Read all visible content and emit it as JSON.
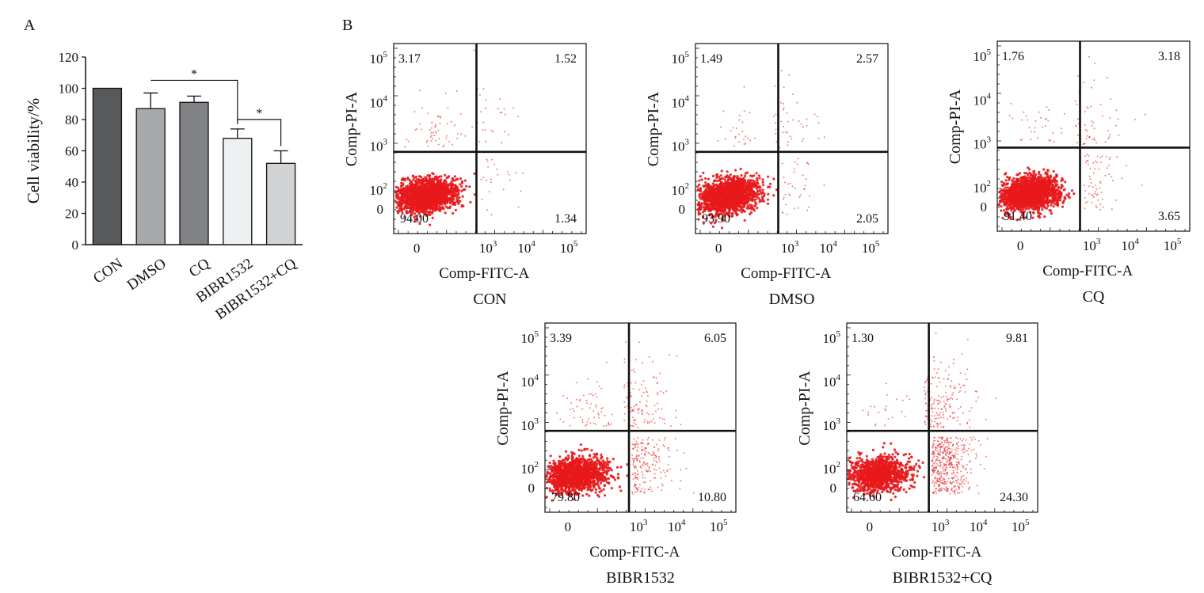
{
  "panel_labels": {
    "a": "A",
    "b": "B"
  },
  "chart_data": [
    {
      "type": "bar",
      "categories": [
        "CON",
        "DMSO",
        "CQ",
        "BIBR1532",
        "BIBR1532+CQ"
      ],
      "values": [
        100,
        87,
        91,
        68,
        52
      ],
      "errors": [
        0,
        10,
        4,
        6,
        8
      ],
      "ylabel": "Cell viability/%",
      "ylim": [
        0,
        120
      ],
      "yticks": [
        "0",
        "20",
        "40",
        "60",
        "80",
        "100",
        "120"
      ],
      "colors": [
        "#58595b",
        "#a7a9ac",
        "#808285",
        "#eef1f1",
        "#d1d3d4"
      ],
      "significance": [
        {
          "from": 1,
          "to": 3,
          "label": "*"
        },
        {
          "from": 3,
          "to": 4,
          "label": "*"
        }
      ]
    },
    {
      "type": "scatter",
      "title": "CON",
      "xlabel": "Comp-FITC-A",
      "ylabel": "Comp-PI-A",
      "quadrants": {
        "ul": "3.17",
        "ur": "1.52",
        "ll": "94.00",
        "lr": "1.34"
      }
    },
    {
      "type": "scatter",
      "title": "DMSO",
      "xlabel": "Comp-FITC-A",
      "ylabel": "Comp-PI-A",
      "quadrants": {
        "ul": "1.49",
        "ur": "2.57",
        "ll": "93.90",
        "lr": "2.05"
      }
    },
    {
      "type": "scatter",
      "title": "CQ",
      "xlabel": "Comp-FITC-A",
      "ylabel": "Comp-PI-A",
      "quadrants": {
        "ul": "1.76",
        "ur": "3.18",
        "ll": "91.40",
        "lr": "3.65"
      }
    },
    {
      "type": "scatter",
      "title": "BIBR1532",
      "xlabel": "Comp-FITC-A",
      "ylabel": "Comp-PI-A",
      "quadrants": {
        "ul": "3.39",
        "ur": "6.05",
        "ll": "79.80",
        "lr": "10.80"
      }
    },
    {
      "type": "scatter",
      "title": "BIBR1532+CQ",
      "xlabel": "Comp-FITC-A",
      "ylabel": "Comp-PI-A",
      "quadrants": {
        "ul": "1.30",
        "ur": "9.81",
        "ll": "64.60",
        "lr": "24.30"
      }
    }
  ],
  "flow_axis_ticks": {
    "x": [
      {
        "base": "0",
        "exp": ""
      },
      {
        "base": "10",
        "exp": "3"
      },
      {
        "base": "10",
        "exp": "4"
      },
      {
        "base": "10",
        "exp": "5"
      }
    ],
    "y": [
      {
        "base": "0",
        "exp": ""
      },
      {
        "base": "10",
        "exp": "2"
      },
      {
        "base": "10",
        "exp": "3"
      },
      {
        "base": "10",
        "exp": "4"
      },
      {
        "base": "10",
        "exp": "5"
      }
    ]
  },
  "dot_color": "#e8181c"
}
